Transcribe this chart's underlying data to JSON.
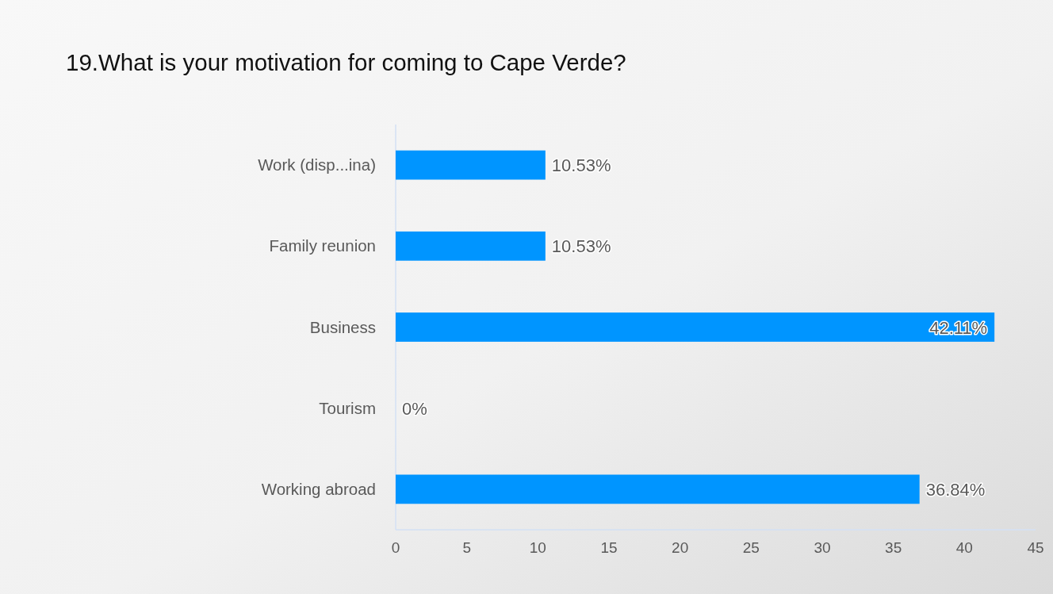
{
  "chart_data": {
    "type": "bar",
    "orientation": "horizontal",
    "title": "19.What is your motivation for coming to Cape Verde?",
    "categories": [
      "Work (disp...ina)",
      "Family reunion",
      "Business",
      "Tourism",
      "Working abroad"
    ],
    "values": [
      10.53,
      10.53,
      42.11,
      0,
      36.84
    ],
    "color": "#0095ff",
    "value_labels": [
      "10.53%",
      "10.53%",
      "42.11%",
      "0%",
      "36.84%"
    ],
    "xlim": [
      0,
      45
    ],
    "xticks": [
      0,
      5,
      10,
      15,
      20,
      25,
      30,
      35,
      40,
      45
    ]
  }
}
